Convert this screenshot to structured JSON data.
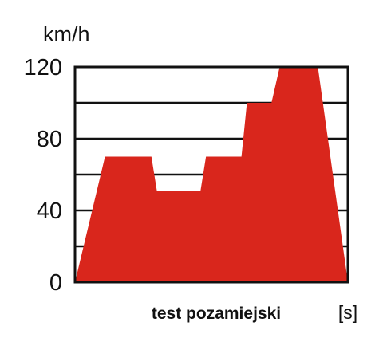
{
  "chart_data": {
    "type": "area",
    "ylabel": "km/h",
    "xlabel": "test pozamiejski",
    "xunit": "[s]",
    "ylim": [
      0,
      120
    ],
    "yticks": [
      0,
      40,
      80,
      120
    ],
    "grid": true,
    "fill_color": "#d9261c",
    "grid_color": "#111111",
    "series": [
      {
        "x": [
          0,
          11,
          28,
          30,
          46,
          48,
          61,
          63,
          72,
          75,
          89,
          100
        ],
        "values": [
          0,
          70,
          70,
          51,
          51,
          70,
          70,
          100,
          100,
          120,
          120,
          0
        ]
      }
    ]
  }
}
